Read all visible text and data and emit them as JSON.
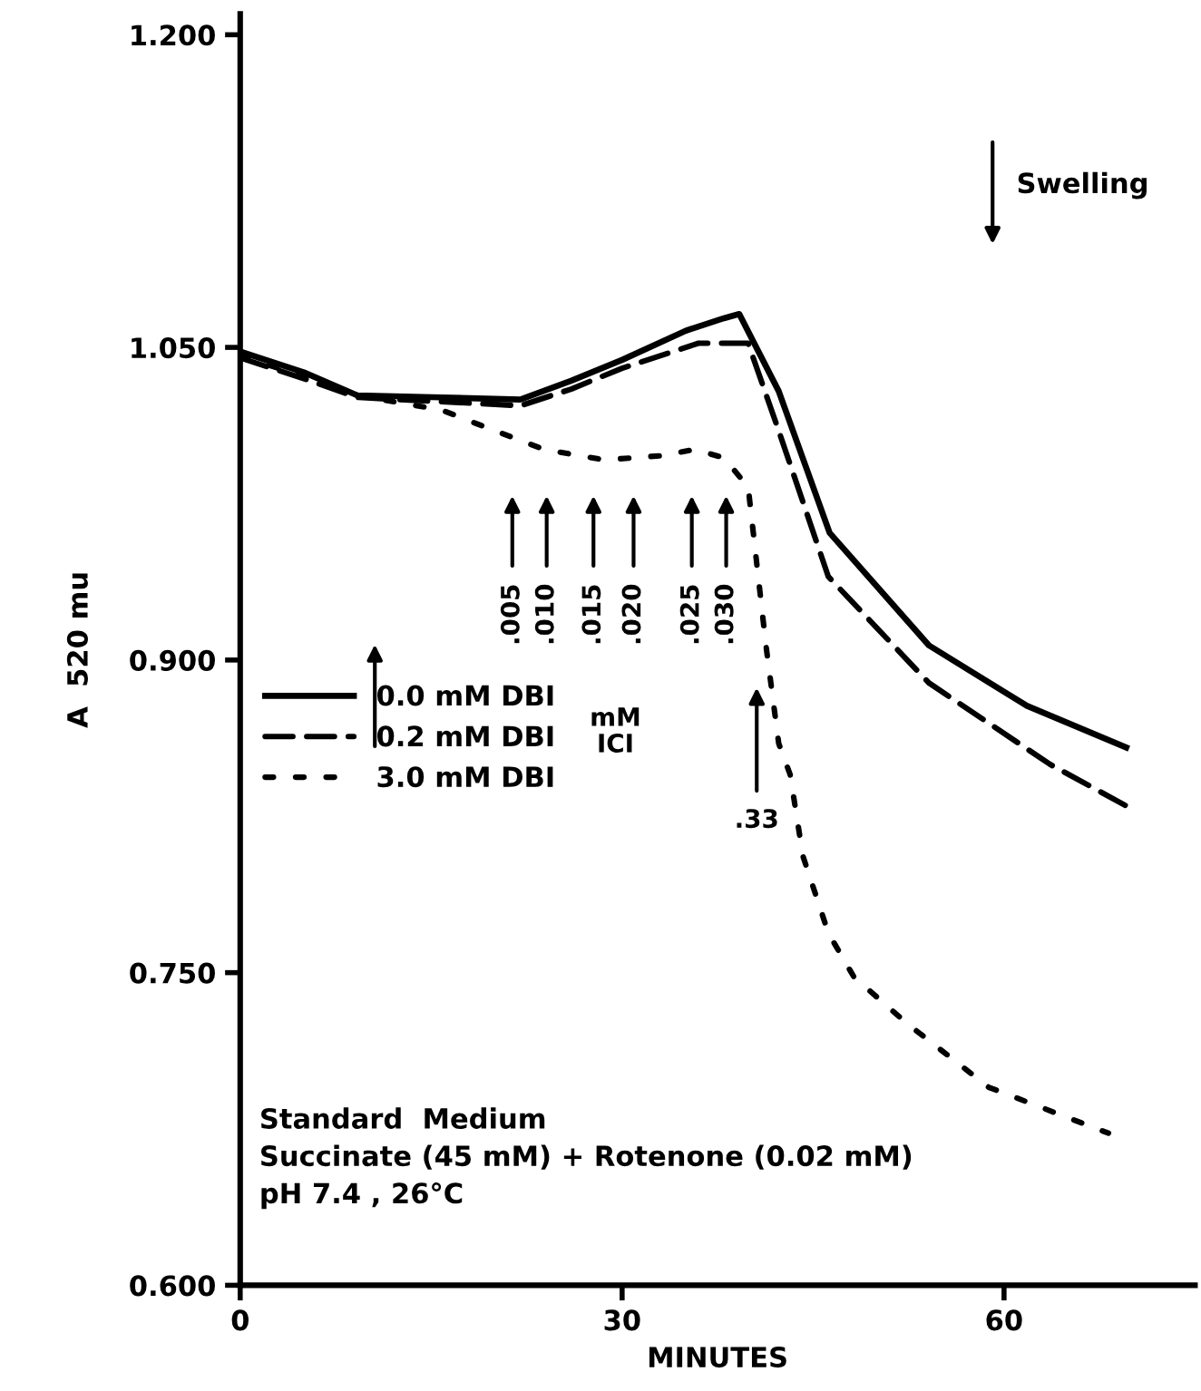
{
  "chart_data": {
    "type": "line",
    "xlabel": "MINUTES",
    "ylabel": "A  520 mu",
    "x": [
      0,
      5,
      9.2,
      15.8,
      22,
      26,
      30,
      35,
      38,
      39.2,
      42.3,
      46.3,
      54.1,
      61.8,
      69.6
    ],
    "series": [
      {
        "name": "0.0 mM DBI",
        "color": "#000000",
        "line_style": "solid",
        "values": [
          1.048,
          1.038,
          1.027,
          1.026,
          1.025,
          1.034,
          1.044,
          1.058,
          1.064,
          1.066,
          1.029,
          0.961,
          0.907,
          0.878,
          0.858
        ]
      },
      {
        "name": "0.2 mM DBI",
        "color": "#000000",
        "line_style": "dashed",
        "x": [
          0,
          5,
          9.2,
          15.8,
          22,
          26,
          30,
          36,
          39.9,
          42.3,
          46.2,
          54.1,
          63.6,
          69.6
        ],
        "values": [
          1.045,
          1.035,
          1.026,
          1.024,
          1.022,
          1.03,
          1.04,
          1.052,
          1.052,
          1.01,
          0.94,
          0.889,
          0.85,
          0.83
        ]
      },
      {
        "name": "3.0 mM DBI",
        "color": "#000000",
        "line_style": "dotted",
        "x": [
          0,
          5,
          9.2,
          15.8,
          20,
          23.9,
          28.6,
          33,
          35.7,
          38,
          39.9,
          41.3,
          42.3,
          43.2,
          44.2,
          46.2,
          48.2,
          52.3,
          58.8,
          68.2
        ],
        "values": [
          1.046,
          1.036,
          1.027,
          1.02,
          1.01,
          1.001,
          0.996,
          0.998,
          1.001,
          0.997,
          0.983,
          0.907,
          0.86,
          0.845,
          0.806,
          0.769,
          0.748,
          0.726,
          0.695,
          0.673
        ]
      }
    ],
    "xlim": [
      0,
      75
    ],
    "ylim": [
      0.6,
      1.21
    ],
    "xticks": [
      0,
      30,
      60
    ],
    "yticks": [
      {
        "value": 0.6,
        "label": "0.600"
      },
      {
        "value": 0.75,
        "label": "0.750"
      },
      {
        "value": 0.9,
        "label": "0.900"
      },
      {
        "value": 1.05,
        "label": "1.050"
      },
      {
        "value": 1.2,
        "label": "1.200"
      }
    ],
    "grid": false,
    "legend": "left",
    "annotations": [
      ".005",
      ".010",
      ".015",
      ".020",
      ".025",
      ".030",
      "mM\nICI",
      ".33",
      "Swelling",
      "Standard  Medium\nSuccinate (45 mM) + Rotenone (0.02 mM)\npH 7.4 , 26°C"
    ]
  }
}
